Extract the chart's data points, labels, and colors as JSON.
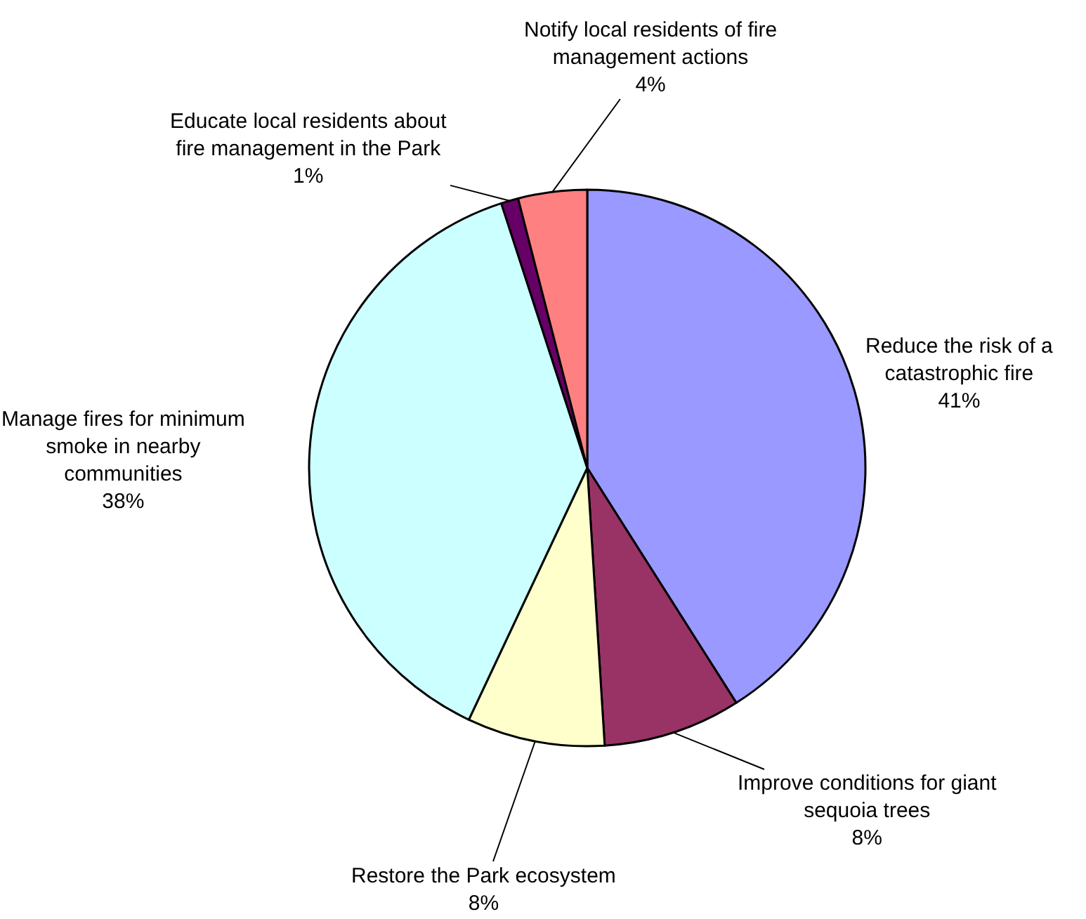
{
  "chart_data": {
    "type": "pie",
    "categories": [
      "Reduce the risk of a catastrophic fire",
      "Improve conditions for giant sequoia trees",
      "Restore the Park ecosystem",
      "Manage fires for minimum smoke in nearby communities",
      "Educate local residents about fire management in the Park",
      "Notify local residents of fire management actions"
    ],
    "values": [
      41,
      8,
      8,
      38,
      1,
      4
    ],
    "colors": [
      "#9999ff",
      "#993366",
      "#ffffcc",
      "#ccffff",
      "#660066",
      "#ff8080"
    ],
    "value_labels": [
      "41%",
      "8%",
      "8%",
      "38%",
      "1%",
      "4%"
    ]
  }
}
